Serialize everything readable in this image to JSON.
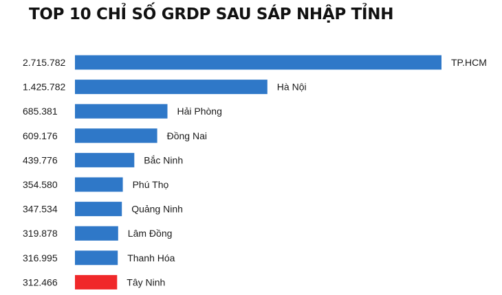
{
  "chart_data": {
    "type": "bar",
    "orientation": "horizontal",
    "title": "TOP 10 CHỈ SỐ GRDP SAU SÁP NHẬP TỈNH",
    "xlabel": "",
    "ylabel": "",
    "grid": false,
    "categories": [
      "TP.HCM",
      "Hà Nội",
      "Hải Phòng",
      "Đồng Nai",
      "Bắc Ninh",
      "Phú Thọ",
      "Quảng Ninh",
      "Lâm Đồng",
      "Thanh Hóa",
      "Tây Ninh"
    ],
    "values": [
      2715782,
      1425782,
      685381,
      609176,
      439776,
      354580,
      347534,
      319878,
      316995,
      312466
    ],
    "value_labels": [
      "2.715.782",
      "1.425.782",
      "685.381",
      "609.176",
      "439.776",
      "354.580",
      "347.534",
      "319.878",
      "316.995",
      "312.466"
    ],
    "colors": [
      "#2f78c8",
      "#2f78c8",
      "#2f78c8",
      "#2f78c8",
      "#2f78c8",
      "#2f78c8",
      "#2f78c8",
      "#2f78c8",
      "#2f78c8",
      "#f0282a"
    ],
    "xlim": [
      0,
      2715782
    ]
  }
}
